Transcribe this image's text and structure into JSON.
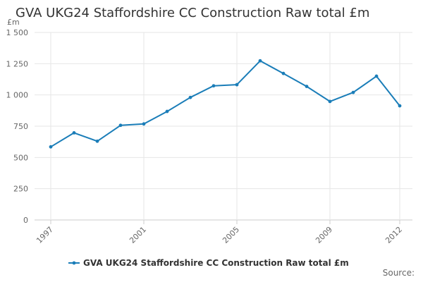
{
  "chart_data": {
    "type": "line",
    "title": "GVA UKG24 Staffordshire CC Construction Raw total £m",
    "unit_label": "£m",
    "xlabel": "",
    "ylabel": "",
    "x": [
      1997,
      1998,
      1999,
      2000,
      2001,
      2002,
      2003,
      2004,
      2005,
      2006,
      2007,
      2008,
      2009,
      2010,
      2011,
      2012
    ],
    "x_tick_labels": [
      "1997",
      "2001",
      "2005",
      "2009",
      "2012"
    ],
    "y_tick_labels": [
      "0",
      "250",
      "500",
      "750",
      "1 000",
      "1 250",
      "1 500"
    ],
    "ylim": [
      0,
      1500
    ],
    "grid": true,
    "legend_position": "bottom",
    "series": [
      {
        "name": "GVA UKG24 Staffordshire CC Construction Raw total £m",
        "color": "#1a7db8",
        "values": [
          585,
          697,
          630,
          757,
          768,
          868,
          980,
          1073,
          1082,
          1273,
          1172,
          1068,
          948,
          1020,
          1150,
          913
        ]
      }
    ]
  },
  "footer": {
    "source_label": "Source:"
  }
}
